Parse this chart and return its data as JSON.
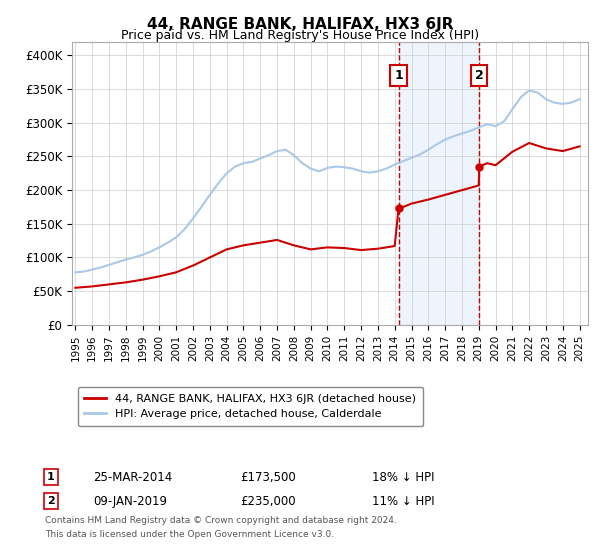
{
  "title": "44, RANGE BANK, HALIFAX, HX3 6JR",
  "subtitle": "Price paid vs. HM Land Registry's House Price Index (HPI)",
  "ylabel_ticks": [
    "£0",
    "£50K",
    "£100K",
    "£150K",
    "£200K",
    "£250K",
    "£300K",
    "£350K",
    "£400K"
  ],
  "ytick_values": [
    0,
    50000,
    100000,
    150000,
    200000,
    250000,
    300000,
    350000,
    400000
  ],
  "ylim": [
    0,
    420000
  ],
  "xlim_start": 1994.8,
  "xlim_end": 2025.5,
  "sale1_x": 2014.23,
  "sale1_y": 173500,
  "sale2_x": 2019.03,
  "sale2_y": 235000,
  "sale1_label": "25-MAR-2014",
  "sale1_price": "£173,500",
  "sale1_hpi": "18% ↓ HPI",
  "sale2_label": "09-JAN-2019",
  "sale2_price": "£235,000",
  "sale2_hpi": "11% ↓ HPI",
  "legend1": "44, RANGE BANK, HALIFAX, HX3 6JR (detached house)",
  "legend2": "HPI: Average price, detached house, Calderdale",
  "footer": "Contains HM Land Registry data © Crown copyright and database right 2024.\nThis data is licensed under the Open Government Licence v3.0.",
  "sale_color": "#cc0000",
  "hpi_color": "#aac8e8",
  "shade_color": "#cce0f5",
  "vline_color": "#cc0000",
  "background_color": "#ffffff",
  "grid_color": "#cccccc",
  "hpi_years": [
    1995.0,
    1995.5,
    1996.0,
    1996.5,
    1997.0,
    1997.5,
    1998.0,
    1998.5,
    1999.0,
    1999.5,
    2000.0,
    2000.5,
    2001.0,
    2001.5,
    2002.0,
    2002.5,
    2003.0,
    2003.5,
    2004.0,
    2004.5,
    2005.0,
    2005.5,
    2006.0,
    2006.5,
    2007.0,
    2007.5,
    2008.0,
    2008.5,
    2009.0,
    2009.5,
    2010.0,
    2010.5,
    2011.0,
    2011.5,
    2012.0,
    2012.5,
    2013.0,
    2013.5,
    2014.0,
    2014.5,
    2015.0,
    2015.5,
    2016.0,
    2016.5,
    2017.0,
    2017.5,
    2018.0,
    2018.5,
    2019.0,
    2019.5,
    2020.0,
    2020.5,
    2021.0,
    2021.5,
    2022.0,
    2022.5,
    2023.0,
    2023.5,
    2024.0,
    2024.5,
    2025.0
  ],
  "hpi_values": [
    78000,
    79000,
    82000,
    85000,
    89000,
    93000,
    97000,
    100000,
    104000,
    109000,
    115000,
    122000,
    130000,
    142000,
    158000,
    175000,
    193000,
    210000,
    225000,
    235000,
    240000,
    242000,
    247000,
    252000,
    258000,
    260000,
    252000,
    240000,
    232000,
    228000,
    233000,
    235000,
    234000,
    232000,
    228000,
    226000,
    228000,
    232000,
    238000,
    243000,
    248000,
    253000,
    260000,
    268000,
    275000,
    280000,
    284000,
    288000,
    293000,
    298000,
    295000,
    302000,
    320000,
    338000,
    348000,
    345000,
    335000,
    330000,
    328000,
    330000,
    335000
  ],
  "prop_years": [
    1995.0,
    1996.0,
    1997.0,
    1998.0,
    1999.0,
    2000.0,
    2001.0,
    2002.0,
    2003.0,
    2004.0,
    2005.0,
    2006.0,
    2007.0,
    2008.0,
    2009.0,
    2010.0,
    2011.0,
    2012.0,
    2013.0,
    2014.0,
    2014.23,
    2014.5,
    2015.0,
    2016.0,
    2017.0,
    2018.0,
    2019.0,
    2019.03,
    2019.5,
    2020.0,
    2021.0,
    2022.0,
    2023.0,
    2024.0,
    2025.0
  ],
  "prop_values": [
    55000,
    57000,
    60000,
    63000,
    67000,
    72000,
    78000,
    88000,
    100000,
    112000,
    118000,
    122000,
    126000,
    118000,
    112000,
    115000,
    114000,
    111000,
    113000,
    117000,
    173500,
    175000,
    180000,
    186000,
    193000,
    200000,
    207000,
    235000,
    240000,
    237000,
    257000,
    270000,
    262000,
    258000,
    265000
  ]
}
